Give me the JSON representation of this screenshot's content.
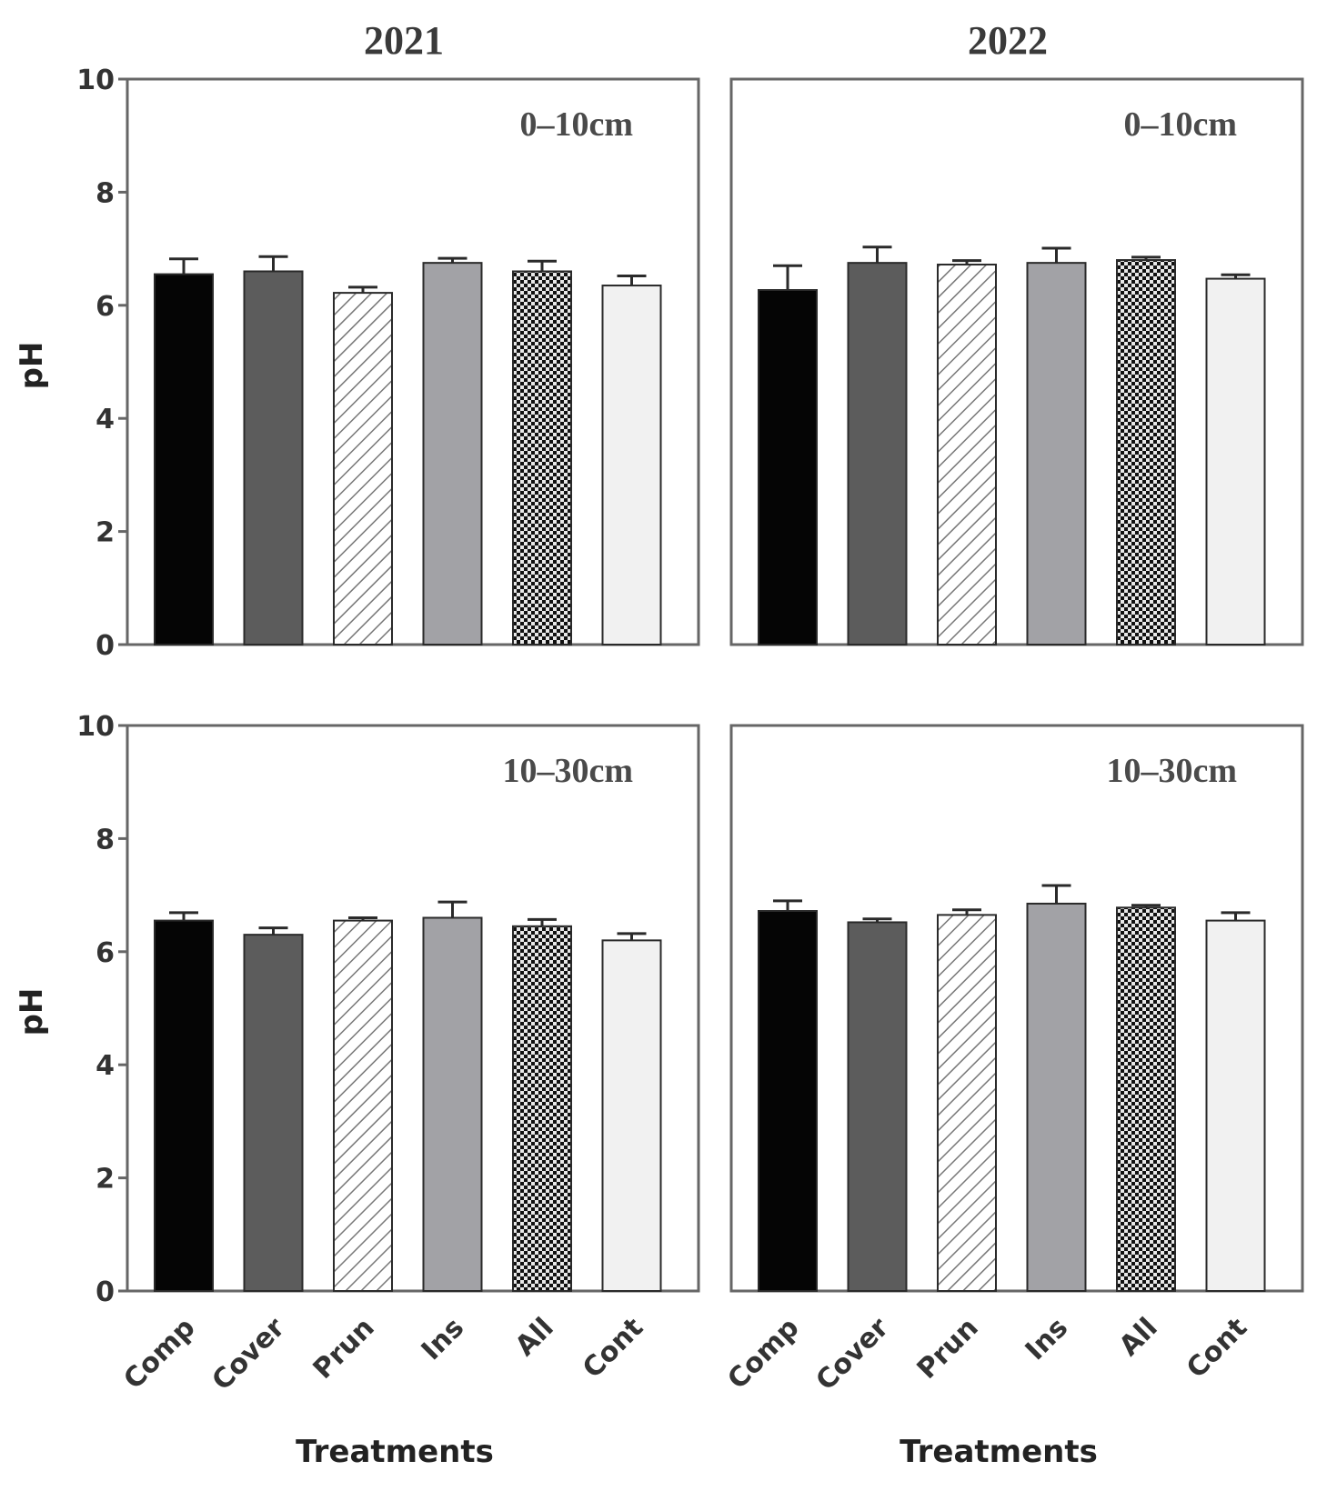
{
  "colors": {
    "Comp": "#050505",
    "Cover": "#5c5c5c",
    "Prun": "hatch",
    "Ins": "#a2a2a6",
    "All": "checker",
    "Cont": "#f1f1f1",
    "frame": "#666666",
    "bar_edge": "#2a2a2a"
  },
  "chart_data": [
    {
      "type": "bar",
      "title": "2021",
      "annotation": "0–10cm",
      "ylabel": "pH",
      "xlabel": "",
      "categories": [
        "Comp",
        "Cover",
        "Prun",
        "Ins",
        "All",
        "Cont"
      ],
      "values": [
        6.55,
        6.6,
        6.22,
        6.75,
        6.6,
        6.35
      ],
      "errors": [
        0.27,
        0.26,
        0.1,
        0.08,
        0.18,
        0.17
      ],
      "ylim": [
        0,
        10
      ],
      "yticks": [
        0,
        2,
        4,
        6,
        8,
        10
      ]
    },
    {
      "type": "bar",
      "title": "2022",
      "annotation": "0–10cm",
      "ylabel": "",
      "xlabel": "",
      "categories": [
        "Comp",
        "Cover",
        "Prun",
        "Ins",
        "All",
        "Cont"
      ],
      "values": [
        6.27,
        6.75,
        6.72,
        6.75,
        6.8,
        6.47
      ],
      "errors": [
        0.43,
        0.28,
        0.07,
        0.26,
        0.05,
        0.07
      ],
      "ylim": [
        0,
        10
      ],
      "yticks": []
    },
    {
      "type": "bar",
      "title": "",
      "annotation": "10–30cm",
      "ylabel": "pH",
      "xlabel": "Treatments",
      "categories": [
        "Comp",
        "Cover",
        "Prun",
        "Ins",
        "All",
        "Cont"
      ],
      "values": [
        6.55,
        6.3,
        6.55,
        6.6,
        6.45,
        6.2
      ],
      "errors": [
        0.14,
        0.12,
        0.05,
        0.28,
        0.12,
        0.12
      ],
      "ylim": [
        0,
        10
      ],
      "yticks": [
        0,
        2,
        4,
        6,
        8,
        10
      ]
    },
    {
      "type": "bar",
      "title": "",
      "annotation": "10–30cm",
      "ylabel": "",
      "xlabel": "Treatments",
      "categories": [
        "Comp",
        "Cover",
        "Prun",
        "Ins",
        "All",
        "Cont"
      ],
      "values": [
        6.72,
        6.52,
        6.65,
        6.85,
        6.78,
        6.55
      ],
      "errors": [
        0.18,
        0.06,
        0.09,
        0.32,
        0.04,
        0.14
      ],
      "ylim": [
        0,
        10
      ],
      "yticks": []
    }
  ]
}
